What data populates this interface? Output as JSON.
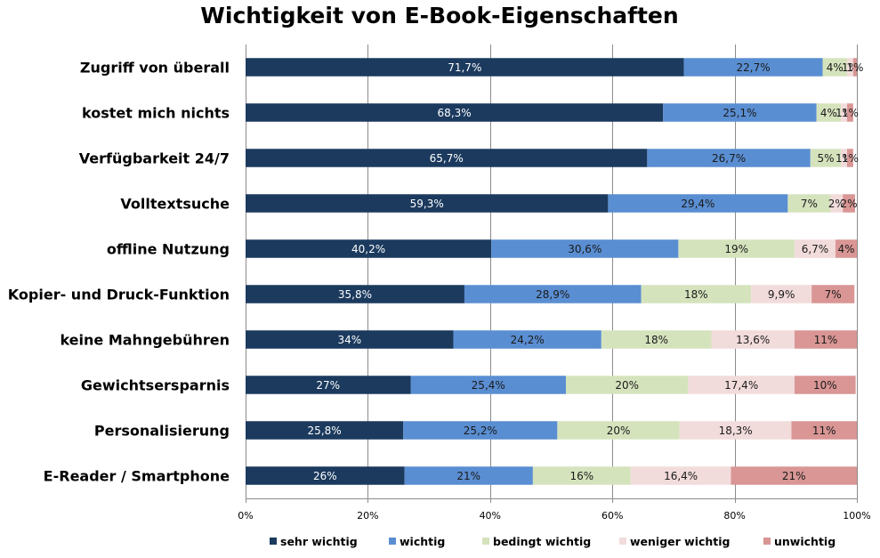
{
  "chart_data": {
    "type": "bar",
    "orientation": "horizontal",
    "stacked": true,
    "title": "Wichtigkeit von E-Book-Eigenschaften",
    "categories": [
      "Zugriff von überall",
      "kostet mich nichts",
      "Verfügbarkeit 24/7",
      "Volltextsuche",
      "offline Nutzung",
      "Kopier- und Druck-Funktion",
      "keine Mahngebühren",
      "Gewichtsersparnis",
      "Personalisierung",
      "E-Reader / Smartphone"
    ],
    "series": [
      {
        "name": "sehr wichtig",
        "color": "#1b3a5e",
        "values": [
          71.7,
          68.3,
          65.7,
          59.3,
          40.2,
          35.8,
          34,
          27,
          25.8,
          26
        ],
        "labels": [
          "71,7%",
          "68,3%",
          "65,7%",
          "59,3%",
          "40,2%",
          "35,8%",
          "34%",
          "27%",
          "25,8%",
          "26%"
        ]
      },
      {
        "name": "wichtig",
        "color": "#5a8ed2",
        "values": [
          22.7,
          25.1,
          26.7,
          29.4,
          30.6,
          28.9,
          24.2,
          25.4,
          25.2,
          21
        ],
        "labels": [
          "22,7%",
          "25,1%",
          "26,7%",
          "29,4%",
          "30,6%",
          "28,9%",
          "24,2%",
          "25,4%",
          "25,2%",
          "21%"
        ]
      },
      {
        "name": "bedingt wichtig",
        "color": "#d5e3bd",
        "values": [
          4,
          4,
          5,
          7,
          19,
          18,
          18,
          20,
          20,
          16
        ],
        "labels": [
          "4%",
          "4%",
          "5%",
          "7%",
          "19%",
          "18%",
          "18%",
          "20%",
          "20%",
          "16%"
        ]
      },
      {
        "name": "weniger wichtig",
        "color": "#f2dcdb",
        "values": [
          1,
          1,
          1,
          2,
          6.7,
          9.9,
          13.6,
          17.4,
          18.3,
          16.4
        ],
        "labels": [
          "1%",
          "1%",
          "1%",
          "2%",
          "6,7%",
          "9,9%",
          "13,6%",
          "17,4%",
          "18,3%",
          "16,4%"
        ]
      },
      {
        "name": "unwichtig",
        "color": "#d99695",
        "values": [
          1,
          1,
          1,
          2,
          4,
          7,
          11,
          10,
          11,
          21
        ],
        "labels": [
          "1%",
          "1%",
          "1%",
          "2%",
          "4%",
          "7%",
          "11%",
          "10%",
          "11%",
          "21%"
        ]
      }
    ],
    "xlim": [
      0,
      100
    ],
    "xticks": [
      "0%",
      "20%",
      "40%",
      "60%",
      "80%",
      "100%"
    ],
    "grid": true,
    "legend_position": "bottom"
  }
}
